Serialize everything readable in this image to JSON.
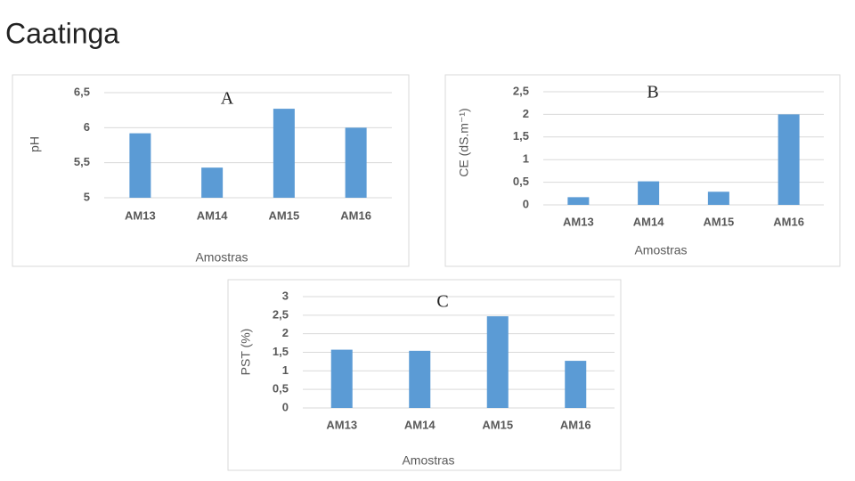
{
  "title": "Caatinga",
  "chart_data": [
    {
      "type": "bar",
      "annotation": "A",
      "xlabel": "Amostras",
      "ylabel": "pH",
      "categories": [
        "AM13",
        "AM14",
        "AM15",
        "AM16"
      ],
      "values": [
        5.92,
        5.43,
        6.27,
        6.0
      ],
      "color": "#5b9bd5",
      "ylim": [
        5,
        6.5
      ],
      "yticks": [
        5,
        {
          "value": 5.5,
          "label": "5,5"
        },
        6,
        {
          "value": 6.5,
          "label": "6,5"
        }
      ],
      "grid": true
    },
    {
      "type": "bar",
      "annotation": "B",
      "xlabel": "Amostras",
      "ylabel": "CE (dS.m⁻¹)",
      "categories": [
        "AM13",
        "AM14",
        "AM15",
        "AM16"
      ],
      "values": [
        0.17,
        0.52,
        0.29,
        2.0
      ],
      "color": "#5b9bd5",
      "ylim": [
        0,
        2.5
      ],
      "yticks": [
        0,
        {
          "value": 0.5,
          "label": "0,5"
        },
        1,
        {
          "value": 1.5,
          "label": "1,5"
        },
        2,
        {
          "value": 2.5,
          "label": "2,5"
        }
      ],
      "grid": true
    },
    {
      "type": "bar",
      "annotation": "C",
      "xlabel": "Amostras",
      "ylabel": "PST (%)",
      "categories": [
        "AM13",
        "AM14",
        "AM15",
        "AM16"
      ],
      "values": [
        1.57,
        1.54,
        2.47,
        1.27
      ],
      "color": "#5b9bd5",
      "ylim": [
        0,
        3
      ],
      "yticks": [
        0,
        {
          "value": 0.5,
          "label": "0,5"
        },
        1,
        {
          "value": 1.5,
          "label": "1,5"
        },
        2,
        {
          "value": 2.5,
          "label": "2,5"
        },
        3
      ],
      "grid": true
    }
  ]
}
